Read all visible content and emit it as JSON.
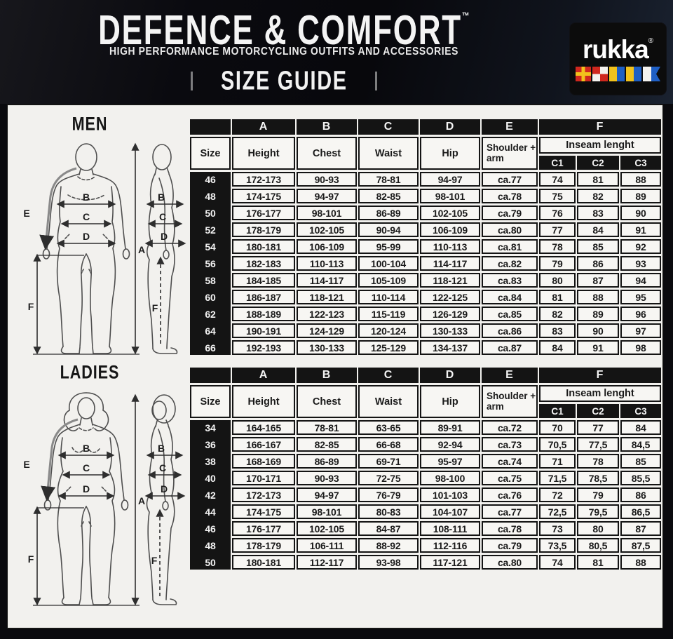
{
  "header": {
    "title": "DEFENCE & COMFORT",
    "trademark": "™",
    "subtitle": "HIGH PERFORMANCE MOTORCYCLING OUTFITS AND ACCESSORIES",
    "size_guide": "SIZE GUIDE",
    "brand": "rukka",
    "registered": "®"
  },
  "colors": {
    "flag_red": "#d0281e",
    "flag_yellow": "#f2c21c",
    "flag_blue": "#1f5fc4",
    "panel_bg": "#f2f1ee",
    "table_black": "#141414"
  },
  "icons": {
    "flags": [
      "signal-flag-r",
      "signal-flag-u",
      "signal-flag-k",
      "signal-flag-k",
      "signal-flag-a"
    ]
  },
  "figures": {
    "men_title": "MEN",
    "ladies_title": "LADIES",
    "labels": {
      "a": "A",
      "b": "B",
      "c": "C",
      "d": "D",
      "e": "E",
      "f": "F"
    }
  },
  "table_headers": {
    "letters": [
      "A",
      "B",
      "C",
      "D",
      "E",
      "F"
    ],
    "size": "Size",
    "height": "Height",
    "chest": "Chest",
    "waist": "Waist",
    "hip": "Hip",
    "shoulder": "Shoulder + arm",
    "inseam": "Inseam lenght",
    "c1": "C1",
    "c2": "C2",
    "c3": "C3"
  },
  "tables": {
    "men": {
      "rows": [
        [
          "46",
          "172-173",
          "90-93",
          "78-81",
          "94-97",
          "ca.77",
          "74",
          "81",
          "88"
        ],
        [
          "48",
          "174-175",
          "94-97",
          "82-85",
          "98-101",
          "ca.78",
          "75",
          "82",
          "89"
        ],
        [
          "50",
          "176-177",
          "98-101",
          "86-89",
          "102-105",
          "ca.79",
          "76",
          "83",
          "90"
        ],
        [
          "52",
          "178-179",
          "102-105",
          "90-94",
          "106-109",
          "ca.80",
          "77",
          "84",
          "91"
        ],
        [
          "54",
          "180-181",
          "106-109",
          "95-99",
          "110-113",
          "ca.81",
          "78",
          "85",
          "92"
        ],
        [
          "56",
          "182-183",
          "110-113",
          "100-104",
          "114-117",
          "ca.82",
          "79",
          "86",
          "93"
        ],
        [
          "58",
          "184-185",
          "114-117",
          "105-109",
          "118-121",
          "ca.83",
          "80",
          "87",
          "94"
        ],
        [
          "60",
          "186-187",
          "118-121",
          "110-114",
          "122-125",
          "ca.84",
          "81",
          "88",
          "95"
        ],
        [
          "62",
          "188-189",
          "122-123",
          "115-119",
          "126-129",
          "ca.85",
          "82",
          "89",
          "96"
        ],
        [
          "64",
          "190-191",
          "124-129",
          "120-124",
          "130-133",
          "ca.86",
          "83",
          "90",
          "97"
        ],
        [
          "66",
          "192-193",
          "130-133",
          "125-129",
          "134-137",
          "ca.87",
          "84",
          "91",
          "98"
        ]
      ]
    },
    "ladies": {
      "rows": [
        [
          "34",
          "164-165",
          "78-81",
          "63-65",
          "89-91",
          "ca.72",
          "70",
          "77",
          "84"
        ],
        [
          "36",
          "166-167",
          "82-85",
          "66-68",
          "92-94",
          "ca.73",
          "70,5",
          "77,5",
          "84,5"
        ],
        [
          "38",
          "168-169",
          "86-89",
          "69-71",
          "95-97",
          "ca.74",
          "71",
          "78",
          "85"
        ],
        [
          "40",
          "170-171",
          "90-93",
          "72-75",
          "98-100",
          "ca.75",
          "71,5",
          "78,5",
          "85,5"
        ],
        [
          "42",
          "172-173",
          "94-97",
          "76-79",
          "101-103",
          "ca.76",
          "72",
          "79",
          "86"
        ],
        [
          "44",
          "174-175",
          "98-101",
          "80-83",
          "104-107",
          "ca.77",
          "72,5",
          "79,5",
          "86,5"
        ],
        [
          "46",
          "176-177",
          "102-105",
          "84-87",
          "108-111",
          "ca.78",
          "73",
          "80",
          "87"
        ],
        [
          "48",
          "178-179",
          "106-111",
          "88-92",
          "112-116",
          "ca.79",
          "73,5",
          "80,5",
          "87,5"
        ],
        [
          "50",
          "180-181",
          "112-117",
          "93-98",
          "117-121",
          "ca.80",
          "74",
          "81",
          "88"
        ]
      ]
    }
  }
}
